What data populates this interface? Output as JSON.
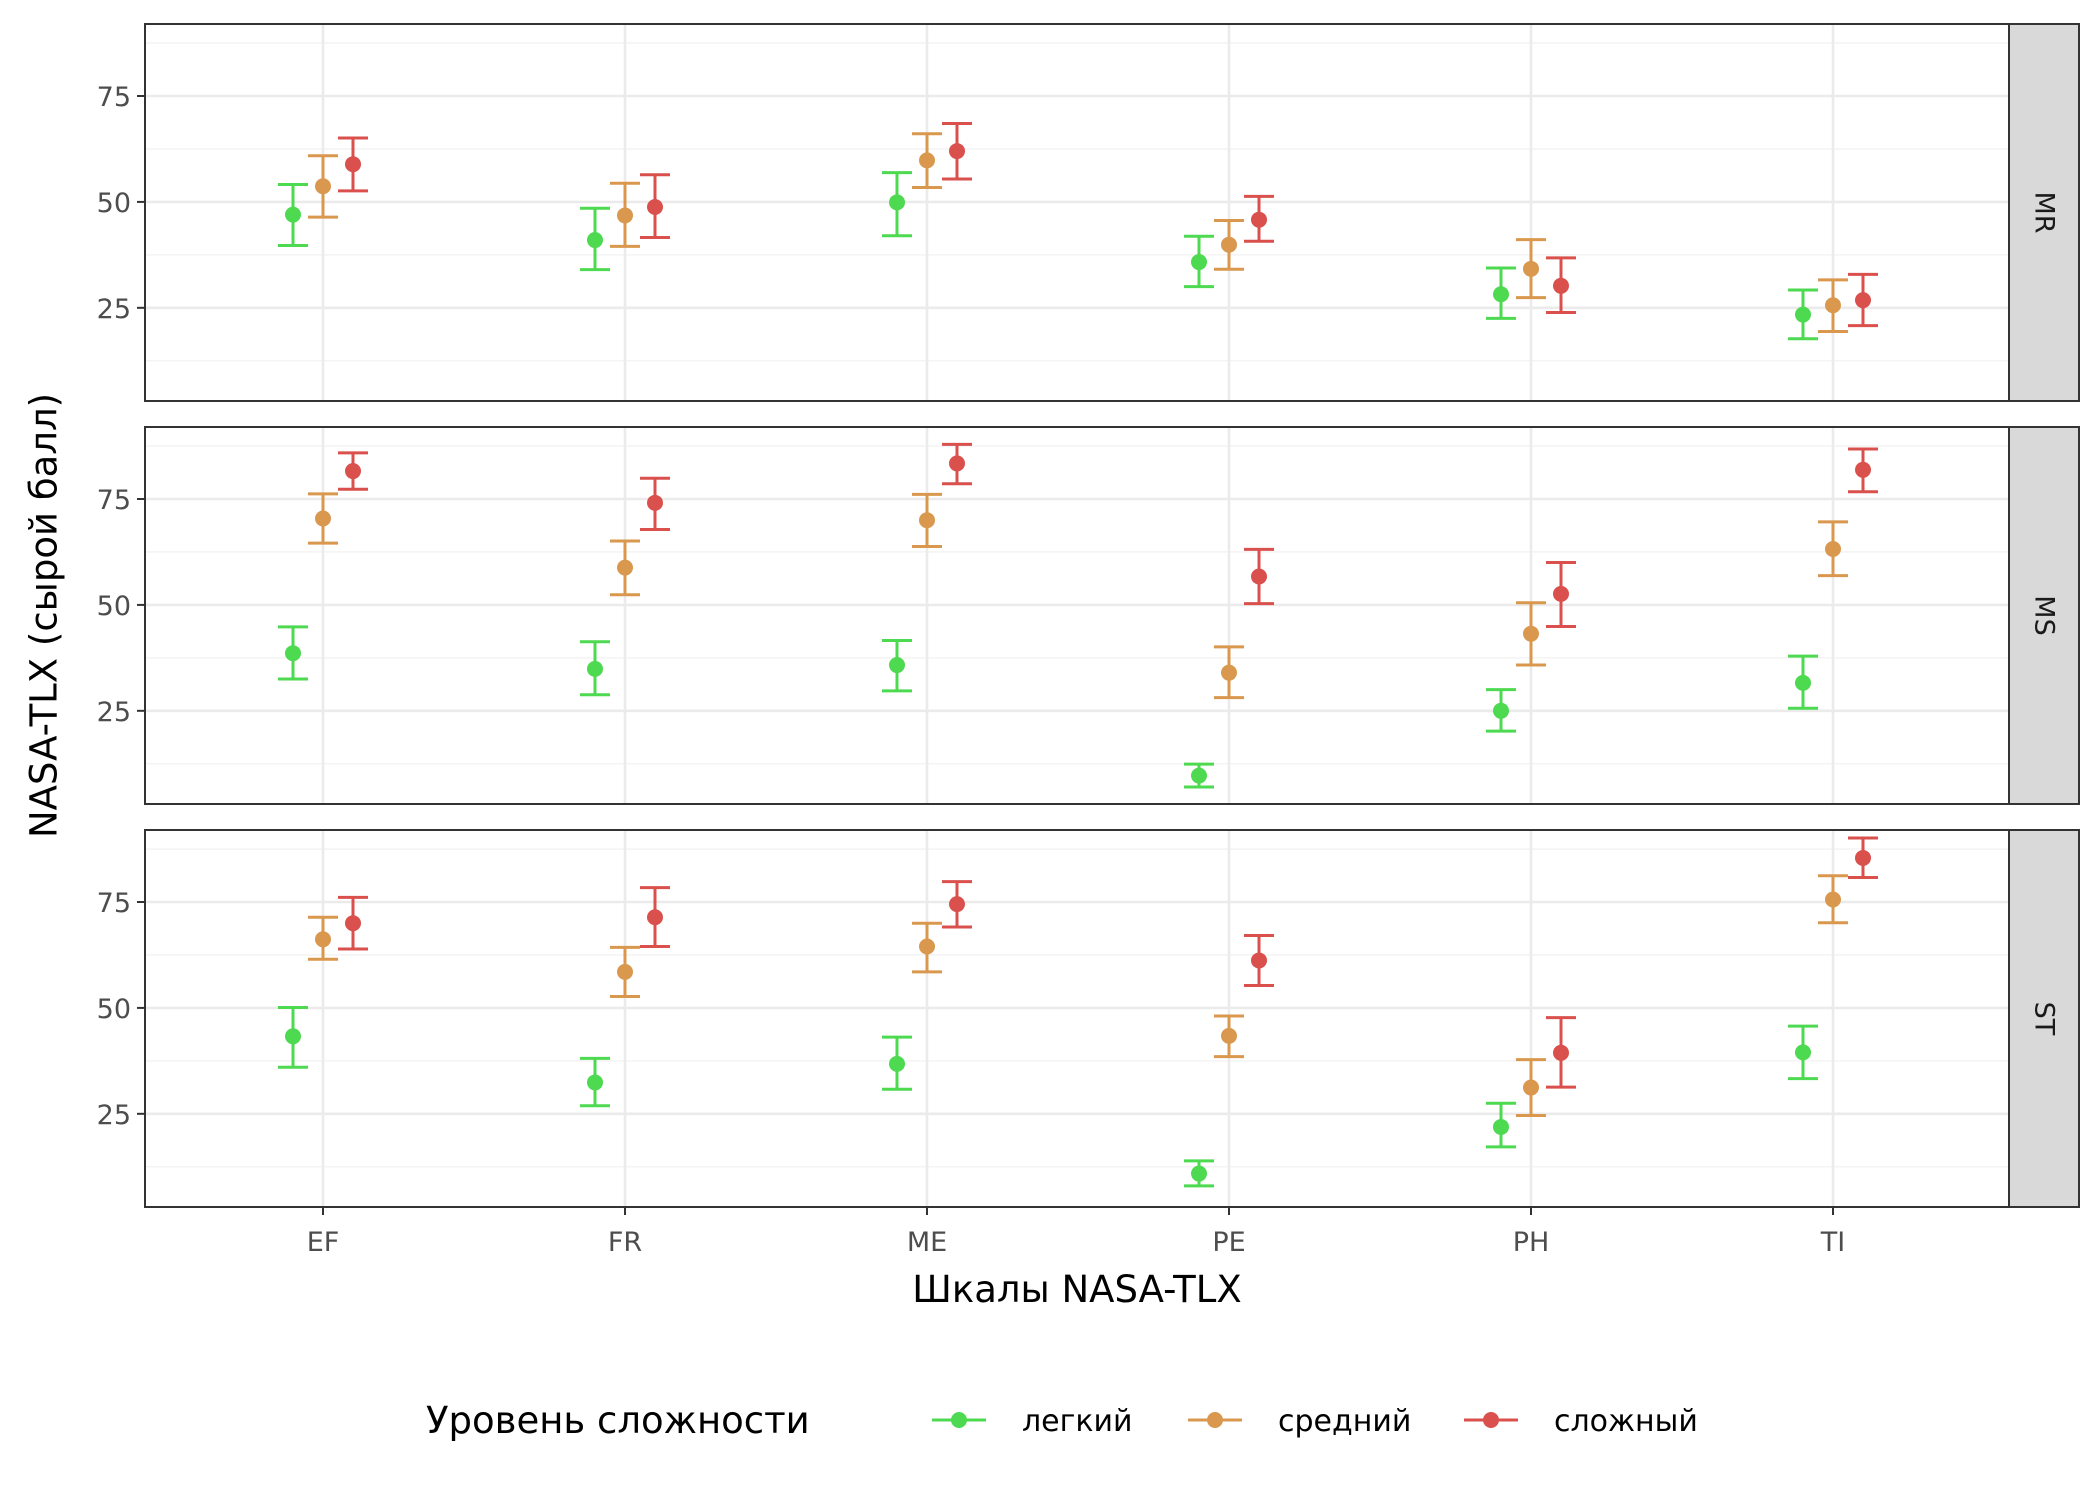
{
  "chart_data": {
    "type": "scatter",
    "subtype": "point-with-errorbars, faceted",
    "xlabel": "Шкалы NASA-TLX",
    "ylabel": "NASA-TLX (сырой балл)",
    "categories": [
      "EF",
      "FR",
      "ME",
      "PE",
      "PH",
      "TI"
    ],
    "ylim": [
      3,
      92
    ],
    "yticks": [
      25,
      50,
      75
    ],
    "grid": true,
    "legend": {
      "title": "Уровень сложности",
      "placement": "bottom"
    },
    "series": [
      {
        "name": "легкий",
        "color": "#4DD950"
      },
      {
        "name": "средний",
        "color": "#D9984D"
      },
      {
        "name": "сложный",
        "color": "#D9504D"
      }
    ],
    "panels": [
      {
        "label": "MR",
        "data": {
          "легкий": [
            [
              47,
              39.7,
              54.1
            ],
            [
              41,
              34.0,
              48.5
            ],
            [
              49.9,
              42.0,
              56.9
            ],
            [
              35.8,
              30.0,
              41.9
            ],
            [
              28.2,
              22.5,
              34.4
            ],
            [
              23.4,
              17.7,
              29.2
            ]
          ],
          "средний": [
            [
              53.7,
              46.4,
              60.9
            ],
            [
              46.8,
              39.5,
              54.4
            ],
            [
              59.8,
              53.4,
              66.1
            ],
            [
              39.9,
              34.1,
              45.6
            ],
            [
              34.2,
              27.4,
              41.1
            ],
            [
              25.6,
              19.4,
              31.6
            ]
          ],
          "сложный": [
            [
              58.9,
              52.6,
              65.1
            ],
            [
              48.8,
              41.6,
              56.4
            ],
            [
              62.0,
              55.4,
              68.5
            ],
            [
              45.8,
              40.7,
              51.3
            ],
            [
              30.2,
              23.9,
              36.8
            ],
            [
              26.8,
              20.8,
              32.9
            ]
          ]
        }
      },
      {
        "label": "MS",
        "data": {
          "легкий": [
            [
              38.6,
              32.5,
              44.8
            ],
            [
              34.9,
              28.8,
              41.3
            ],
            [
              35.8,
              29.7,
              41.6
            ],
            [
              9.7,
              7.0,
              12.4
            ],
            [
              25.0,
              20.2,
              30.0
            ],
            [
              31.6,
              25.6,
              37.9
            ]
          ],
          "средний": [
            [
              70.4,
              64.6,
              76.2
            ],
            [
              58.8,
              52.4,
              65.1
            ],
            [
              70.0,
              63.8,
              76.1
            ],
            [
              34.0,
              28.1,
              40.1
            ],
            [
              43.2,
              35.8,
              50.5
            ],
            [
              63.2,
              56.9,
              69.6
            ]
          ],
          "сложный": [
            [
              81.6,
              77.3,
              85.9
            ],
            [
              74.1,
              67.8,
              79.9
            ],
            [
              83.4,
              78.6,
              87.9
            ],
            [
              56.7,
              50.3,
              63.1
            ],
            [
              52.6,
              44.9,
              60.0
            ],
            [
              81.9,
              76.7,
              86.8
            ]
          ]
        }
      },
      {
        "label": "ST",
        "data": {
          "легкий": [
            [
              43.3,
              36.0,
              50.1
            ],
            [
              32.4,
              26.9,
              38.1
            ],
            [
              36.8,
              30.8,
              43.1
            ],
            [
              10.9,
              8.0,
              13.9
            ],
            [
              21.9,
              17.2,
              27.5
            ],
            [
              39.5,
              33.3,
              45.7
            ]
          ],
          "средний": [
            [
              66.2,
              61.5,
              71.4
            ],
            [
              58.5,
              52.7,
              64.3
            ],
            [
              64.5,
              58.5,
              70.0
            ],
            [
              43.4,
              38.5,
              48.1
            ],
            [
              31.2,
              24.6,
              37.8
            ],
            [
              75.6,
              70.1,
              81.2
            ]
          ],
          "сложный": [
            [
              70.0,
              63.9,
              76.1
            ],
            [
              71.4,
              64.5,
              78.4
            ],
            [
              74.5,
              69.1,
              79.8
            ],
            [
              61.2,
              55.3,
              67.1
            ],
            [
              39.4,
              31.3,
              47.7
            ],
            [
              85.4,
              80.8,
              90.1
            ]
          ]
        }
      }
    ]
  }
}
